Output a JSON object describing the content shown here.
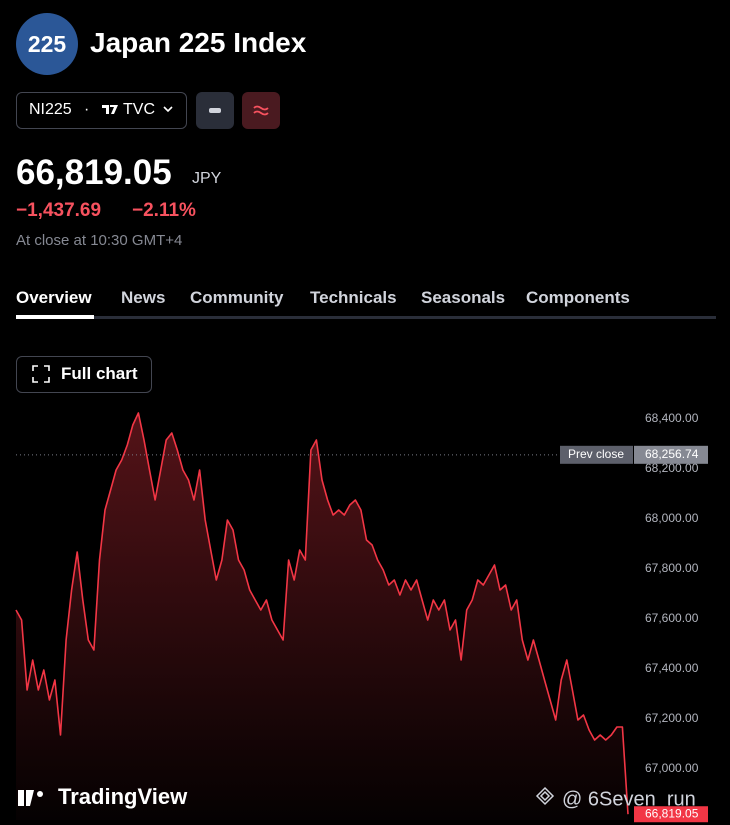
{
  "header": {
    "logo": "225",
    "title": "Japan 225 Index",
    "symbol": "NI225",
    "separator": "·",
    "exchange": "TVC"
  },
  "quote": {
    "price": "66,819.05",
    "currency": "JPY",
    "change": "−1,437.69",
    "change_percent": "−2.11%",
    "status": "At close at 10:30 GMT+4"
  },
  "tabs": [
    "Overview",
    "News",
    "Community",
    "Technicals",
    "Seasonals",
    "Components"
  ],
  "full_chart": "Full chart",
  "chart_data": {
    "type": "area",
    "color": "#f23645",
    "values": [
      67636,
      67596,
      67316,
      67436,
      67316,
      67396,
      67276,
      67356,
      67136,
      67516,
      67716,
      67868,
      67676,
      67516,
      67476,
      67836,
      68036,
      68116,
      68196,
      68236,
      68296,
      68376,
      68424,
      68316,
      68196,
      68076,
      68196,
      68316,
      68344,
      68276,
      68196,
      68156,
      68076,
      68196,
      67996,
      67876,
      67756,
      67836,
      67996,
      67956,
      67836,
      67796,
      67716,
      67676,
      67636,
      67676,
      67596,
      67556,
      67516,
      67836,
      67756,
      67876,
      67836,
      68276,
      68316,
      68156,
      68076,
      68016,
      68036,
      68016,
      68056,
      68076,
      68036,
      67916,
      67896,
      67836,
      67796,
      67736,
      67756,
      67696,
      67756,
      67716,
      67756,
      67676,
      67596,
      67676,
      67636,
      67676,
      67556,
      67596,
      67436,
      67636,
      67676,
      67756,
      67736,
      67776,
      67816,
      67716,
      67736,
      67636,
      67676,
      67516,
      67436,
      67516,
      67436,
      67356,
      67276,
      67196,
      67356,
      67436,
      67316,
      67196,
      67216,
      67156,
      67116,
      67136,
      67116,
      67136,
      67168,
      67168,
      66819.05
    ],
    "ylim": [
      66796,
      68476
    ],
    "yticks": [
      {
        "value": 67000,
        "label": "67,000.00"
      },
      {
        "value": 67200,
        "label": "67,200.00"
      },
      {
        "value": 67400,
        "label": "67,400.00"
      },
      {
        "value": 67600,
        "label": "67,600.00"
      },
      {
        "value": 67800,
        "label": "67,800.00"
      },
      {
        "value": 68000,
        "label": "68,000.00"
      },
      {
        "value": 68200,
        "label": "68,200.00"
      },
      {
        "value": 68400,
        "label": "68,400.00"
      }
    ],
    "prev_close": {
      "name": "Prev close",
      "value": 68256.74,
      "label": "68,256.74"
    },
    "last_price": {
      "value": 66819.05,
      "label": "66,819.05"
    }
  },
  "watermark": {
    "brand": "TradingView",
    "handle": "@ 6Seven_run"
  }
}
